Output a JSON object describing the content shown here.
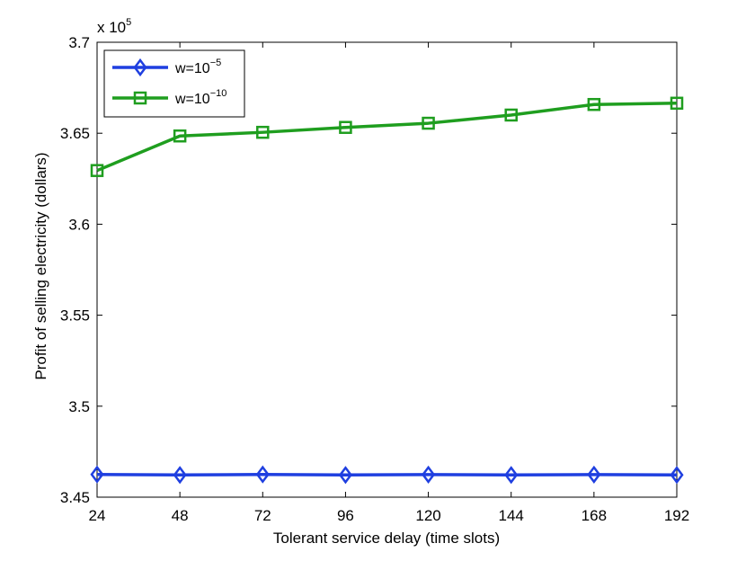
{
  "chart_data": {
    "type": "line",
    "xlabel": "Tolerant service delay (time slots)",
    "ylabel": "Profit of selling electricity (dollars)",
    "y_exponent_label": {
      "base": "x 10",
      "exp": "5"
    },
    "x": [
      24,
      48,
      72,
      96,
      120,
      144,
      168,
      192
    ],
    "xlim": [
      24,
      192
    ],
    "ylim": [
      3.45,
      3.7
    ],
    "x_ticks": [
      "24",
      "48",
      "72",
      "96",
      "120",
      "144",
      "168",
      "192"
    ],
    "y_ticks": [
      "3.45",
      "3.5",
      "3.55",
      "3.6",
      "3.65",
      "3.7"
    ],
    "y_tick_values": [
      3.45,
      3.5,
      3.55,
      3.6,
      3.65,
      3.7
    ],
    "grid": false,
    "legend_position": "top-left",
    "series": [
      {
        "name_base": "w=10",
        "name_exp": "−5",
        "color": "#1f3fe0",
        "marker": "diamond",
        "values": [
          3.4625,
          3.4622,
          3.4625,
          3.4622,
          3.4624,
          3.4622,
          3.4624,
          3.4622
        ]
      },
      {
        "name_base": "w=10",
        "name_exp": "−10",
        "color": "#1f9e1f",
        "marker": "square",
        "values": [
          3.6295,
          3.6485,
          3.6505,
          3.6532,
          3.6555,
          3.66,
          3.6658,
          3.6665
        ]
      }
    ]
  }
}
